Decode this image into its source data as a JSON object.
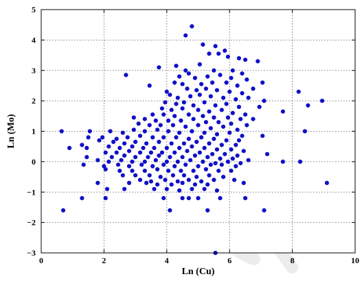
{
  "chart_data": {
    "type": "scatter",
    "title": "",
    "xlabel": "Ln (Cu)",
    "ylabel": "Ln (Mo)",
    "xlim": [
      0,
      10
    ],
    "ylim": [
      -3,
      5
    ],
    "xticks": [
      "0",
      "2",
      "4",
      "6",
      "8",
      "10"
    ],
    "yticks": [
      "−3",
      "−2",
      "−1",
      "0",
      "1",
      "2",
      "3",
      "4",
      "5"
    ],
    "grid": true,
    "legend": "none",
    "marker_color": "#1010c8",
    "points": [
      [
        4.8,
        4.45
      ],
      [
        4.6,
        4.15
      ],
      [
        5.15,
        3.85
      ],
      [
        5.55,
        3.8
      ],
      [
        5.85,
        3.65
      ],
      [
        5.65,
        3.55
      ],
      [
        5.95,
        3.45
      ],
      [
        6.3,
        3.4
      ],
      [
        6.5,
        3.35
      ],
      [
        6.9,
        3.3
      ],
      [
        5.35,
        3.55
      ],
      [
        5.05,
        3.2
      ],
      [
        4.3,
        3.15
      ],
      [
        3.75,
        3.1
      ],
      [
        4.6,
        3.0
      ],
      [
        4.7,
        2.9
      ],
      [
        5.5,
        3.0
      ],
      [
        6.1,
        3.0
      ],
      [
        6.4,
        2.9
      ],
      [
        7.05,
        2.6
      ],
      [
        2.7,
        2.85
      ],
      [
        4.4,
        2.8
      ],
      [
        4.9,
        2.75
      ],
      [
        5.3,
        2.8
      ],
      [
        5.7,
        2.85
      ],
      [
        6.05,
        2.75
      ],
      [
        6.55,
        2.7
      ],
      [
        4.25,
        2.6
      ],
      [
        4.5,
        2.55
      ],
      [
        5.1,
        2.55
      ],
      [
        5.45,
        2.6
      ],
      [
        5.9,
        2.6
      ],
      [
        6.25,
        2.5
      ],
      [
        6.75,
        2.4
      ],
      [
        3.45,
        2.5
      ],
      [
        4.65,
        2.4
      ],
      [
        4.95,
        2.35
      ],
      [
        5.25,
        2.4
      ],
      [
        5.6,
        2.35
      ],
      [
        6.0,
        2.3
      ],
      [
        6.4,
        2.25
      ],
      [
        8.2,
        2.3
      ],
      [
        8.95,
        2.0
      ],
      [
        4.0,
        2.3
      ],
      [
        4.1,
        2.2
      ],
      [
        4.35,
        2.1
      ],
      [
        4.75,
        2.15
      ],
      [
        5.05,
        2.2
      ],
      [
        5.4,
        2.15
      ],
      [
        5.8,
        2.1
      ],
      [
        6.2,
        2.05
      ],
      [
        6.6,
        2.1
      ],
      [
        7.1,
        2.0
      ],
      [
        3.95,
        1.95
      ],
      [
        4.3,
        1.9
      ],
      [
        4.55,
        1.95
      ],
      [
        4.85,
        1.85
      ],
      [
        5.2,
        1.95
      ],
      [
        5.55,
        1.85
      ],
      [
        5.9,
        1.9
      ],
      [
        6.3,
        1.8
      ],
      [
        6.95,
        1.8
      ],
      [
        8.5,
        1.85
      ],
      [
        3.85,
        1.75
      ],
      [
        4.15,
        1.7
      ],
      [
        4.5,
        1.75
      ],
      [
        5.0,
        1.7
      ],
      [
        5.35,
        1.65
      ],
      [
        5.75,
        1.7
      ],
      [
        6.1,
        1.6
      ],
      [
        6.5,
        1.55
      ],
      [
        7.7,
        1.65
      ],
      [
        3.55,
        1.55
      ],
      [
        3.9,
        1.55
      ],
      [
        4.25,
        1.5
      ],
      [
        4.7,
        1.55
      ],
      [
        5.15,
        1.5
      ],
      [
        5.5,
        1.45
      ],
      [
        5.95,
        1.45
      ],
      [
        6.35,
        1.4
      ],
      [
        6.75,
        1.4
      ],
      [
        2.95,
        1.45
      ],
      [
        3.3,
        1.4
      ],
      [
        3.65,
        1.35
      ],
      [
        4.05,
        1.35
      ],
      [
        4.45,
        1.35
      ],
      [
        4.85,
        1.4
      ],
      [
        5.25,
        1.3
      ],
      [
        5.65,
        1.3
      ],
      [
        6.05,
        1.25
      ],
      [
        6.55,
        1.2
      ],
      [
        3.1,
        1.25
      ],
      [
        3.45,
        1.2
      ],
      [
        3.8,
        1.2
      ],
      [
        4.2,
        1.2
      ],
      [
        4.6,
        1.15
      ],
      [
        5.0,
        1.2
      ],
      [
        5.4,
        1.1
      ],
      [
        5.8,
        1.15
      ],
      [
        6.25,
        1.05
      ],
      [
        8.4,
        1.0
      ],
      [
        0.65,
        1.0
      ],
      [
        1.55,
        1.0
      ],
      [
        2.2,
        1.0
      ],
      [
        2.6,
        0.95
      ],
      [
        2.95,
        1.05
      ],
      [
        3.3,
        1.0
      ],
      [
        3.7,
        1.05
      ],
      [
        4.05,
        1.0
      ],
      [
        4.4,
        0.95
      ],
      [
        4.8,
        1.0
      ],
      [
        5.2,
        0.95
      ],
      [
        5.6,
        0.9
      ],
      [
        6.0,
        0.95
      ],
      [
        6.4,
        0.85
      ],
      [
        7.05,
        0.85
      ],
      [
        1.5,
        0.8
      ],
      [
        1.95,
        0.8
      ],
      [
        2.4,
        0.75
      ],
      [
        2.75,
        0.8
      ],
      [
        3.15,
        0.85
      ],
      [
        3.55,
        0.8
      ],
      [
        3.9,
        0.8
      ],
      [
        4.3,
        0.8
      ],
      [
        4.7,
        0.75
      ],
      [
        5.1,
        0.8
      ],
      [
        5.5,
        0.75
      ],
      [
        5.9,
        0.7
      ],
      [
        6.3,
        0.7
      ],
      [
        1.85,
        0.7
      ],
      [
        2.3,
        0.65
      ],
      [
        2.65,
        0.6
      ],
      [
        3.0,
        0.65
      ],
      [
        3.35,
        0.6
      ],
      [
        3.75,
        0.65
      ],
      [
        4.15,
        0.6
      ],
      [
        4.55,
        0.6
      ],
      [
        4.95,
        0.65
      ],
      [
        5.35,
        0.6
      ],
      [
        5.75,
        0.55
      ],
      [
        6.2,
        0.55
      ],
      [
        1.3,
        0.55
      ],
      [
        1.45,
        0.45
      ],
      [
        0.9,
        0.45
      ],
      [
        2.15,
        0.5
      ],
      [
        2.5,
        0.45
      ],
      [
        2.9,
        0.5
      ],
      [
        3.25,
        0.45
      ],
      [
        3.6,
        0.45
      ],
      [
        4.0,
        0.45
      ],
      [
        4.4,
        0.45
      ],
      [
        4.8,
        0.5
      ],
      [
        5.2,
        0.45
      ],
      [
        5.6,
        0.4
      ],
      [
        6.05,
        0.4
      ],
      [
        6.45,
        0.35
      ],
      [
        2.05,
        0.3
      ],
      [
        2.4,
        0.3
      ],
      [
        2.8,
        0.35
      ],
      [
        3.15,
        0.3
      ],
      [
        3.5,
        0.3
      ],
      [
        3.85,
        0.3
      ],
      [
        4.25,
        0.3
      ],
      [
        4.65,
        0.35
      ],
      [
        5.05,
        0.3
      ],
      [
        5.45,
        0.25
      ],
      [
        5.85,
        0.25
      ],
      [
        6.25,
        0.2
      ],
      [
        7.2,
        0.25
      ],
      [
        1.45,
        0.15
      ],
      [
        2.25,
        0.15
      ],
      [
        2.65,
        0.2
      ],
      [
        3.0,
        0.15
      ],
      [
        3.4,
        0.15
      ],
      [
        3.75,
        0.2
      ],
      [
        4.1,
        0.15
      ],
      [
        4.5,
        0.15
      ],
      [
        4.9,
        0.2
      ],
      [
        5.3,
        0.15
      ],
      [
        5.7,
        0.1
      ],
      [
        6.1,
        0.1
      ],
      [
        6.6,
        0.05
      ],
      [
        1.8,
        0.05
      ],
      [
        2.15,
        0.0
      ],
      [
        2.55,
        0.05
      ],
      [
        2.9,
        0.0
      ],
      [
        3.3,
        0.0
      ],
      [
        3.65,
        0.05
      ],
      [
        4.0,
        0.0
      ],
      [
        4.35,
        0.0
      ],
      [
        4.75,
        0.05
      ],
      [
        5.15,
        0.0
      ],
      [
        5.55,
        -0.05
      ],
      [
        5.95,
        0.0
      ],
      [
        6.35,
        -0.05
      ],
      [
        7.7,
        0.0
      ],
      [
        8.25,
        0.0
      ],
      [
        1.35,
        -0.1
      ],
      [
        2.0,
        -0.15
      ],
      [
        2.45,
        -0.1
      ],
      [
        2.8,
        -0.15
      ],
      [
        3.2,
        -0.1
      ],
      [
        3.55,
        -0.15
      ],
      [
        3.9,
        -0.1
      ],
      [
        4.25,
        -0.15
      ],
      [
        4.6,
        -0.1
      ],
      [
        5.0,
        -0.15
      ],
      [
        5.4,
        -0.1
      ],
      [
        5.75,
        -0.1
      ],
      [
        6.2,
        -0.15
      ],
      [
        2.05,
        -0.25
      ],
      [
        2.5,
        -0.3
      ],
      [
        2.9,
        -0.3
      ],
      [
        3.3,
        -0.3
      ],
      [
        3.7,
        -0.25
      ],
      [
        4.05,
        -0.3
      ],
      [
        4.45,
        -0.3
      ],
      [
        4.85,
        -0.3
      ],
      [
        5.25,
        -0.25
      ],
      [
        5.65,
        -0.3
      ],
      [
        6.05,
        -0.3
      ],
      [
        2.6,
        -0.45
      ],
      [
        3.0,
        -0.45
      ],
      [
        3.45,
        -0.45
      ],
      [
        3.8,
        -0.5
      ],
      [
        4.2,
        -0.45
      ],
      [
        4.55,
        -0.45
      ],
      [
        4.95,
        -0.5
      ],
      [
        5.35,
        -0.45
      ],
      [
        5.8,
        -0.5
      ],
      [
        3.15,
        -0.6
      ],
      [
        3.5,
        -0.65
      ],
      [
        3.95,
        -0.6
      ],
      [
        4.35,
        -0.65
      ],
      [
        4.7,
        -0.6
      ],
      [
        5.1,
        -0.65
      ],
      [
        5.5,
        -0.6
      ],
      [
        6.15,
        -0.6
      ],
      [
        1.8,
        -0.7
      ],
      [
        2.8,
        -0.7
      ],
      [
        3.35,
        -0.7
      ],
      [
        3.7,
        -0.75
      ],
      [
        4.15,
        -0.75
      ],
      [
        4.5,
        -0.7
      ],
      [
        4.9,
        -0.75
      ],
      [
        5.3,
        -0.75
      ],
      [
        6.45,
        -0.7
      ],
      [
        9.1,
        -0.7
      ],
      [
        2.65,
        -0.9
      ],
      [
        3.6,
        -0.9
      ],
      [
        4.0,
        -0.9
      ],
      [
        4.4,
        -0.95
      ],
      [
        4.8,
        -0.9
      ],
      [
        5.2,
        -0.9
      ],
      [
        5.6,
        -0.95
      ],
      [
        2.1,
        -0.9
      ],
      [
        3.9,
        -1.2
      ],
      [
        4.5,
        -1.2
      ],
      [
        4.7,
        -1.2
      ],
      [
        5.0,
        -1.2
      ],
      [
        5.7,
        -1.2
      ],
      [
        6.5,
        -1.2
      ],
      [
        1.3,
        -1.2
      ],
      [
        2.05,
        -1.2
      ],
      [
        0.7,
        -1.6
      ],
      [
        4.1,
        -1.6
      ],
      [
        5.3,
        -1.6
      ],
      [
        7.1,
        -1.6
      ],
      [
        5.55,
        -3.0
      ]
    ]
  }
}
